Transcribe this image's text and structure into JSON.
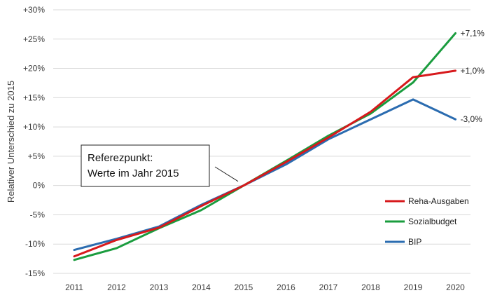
{
  "chart_data": {
    "type": "line",
    "ylabel": "Relativer Unterschied zu 2015",
    "xlabel": "",
    "x": [
      "2011",
      "2012",
      "2013",
      "2014",
      "2015",
      "2016",
      "2017",
      "2018",
      "2019",
      "2020"
    ],
    "ylim": [
      -15,
      30
    ],
    "yticks": [
      30,
      25,
      20,
      15,
      10,
      5,
      0,
      -5,
      -10,
      -15
    ],
    "ytick_labels": [
      "+30%",
      "+25%",
      "+20%",
      "+15%",
      "+10%",
      "+5%",
      "0%",
      "-5%",
      "-10%",
      "-15%"
    ],
    "grid": "horizontal",
    "series": [
      {
        "name": "Reha-Ausgaben",
        "color": "#d7191c",
        "values": [
          -12.1,
          -9.3,
          -7.2,
          -3.5,
          0.0,
          4.0,
          8.2,
          12.6,
          18.5,
          19.6
        ],
        "end_label": "+1,0%"
      },
      {
        "name": "Sozialbudget",
        "color": "#1a9c3e",
        "values": [
          -12.7,
          -10.7,
          -7.3,
          -4.2,
          0.0,
          4.2,
          8.5,
          12.3,
          17.6,
          26.0
        ],
        "end_label": "+7,1%"
      },
      {
        "name": "BIP",
        "color": "#2b6cb0",
        "values": [
          -11.0,
          -9.1,
          -7.0,
          -3.3,
          0.0,
          3.6,
          7.9,
          11.3,
          14.7,
          11.3
        ],
        "end_label": "-3,0%"
      }
    ],
    "legend_position": "bottom-right",
    "annotation": {
      "line1": "Referezpunkt:",
      "line2": "Werte im Jahr 2015",
      "x": "2015",
      "y": 0
    }
  }
}
